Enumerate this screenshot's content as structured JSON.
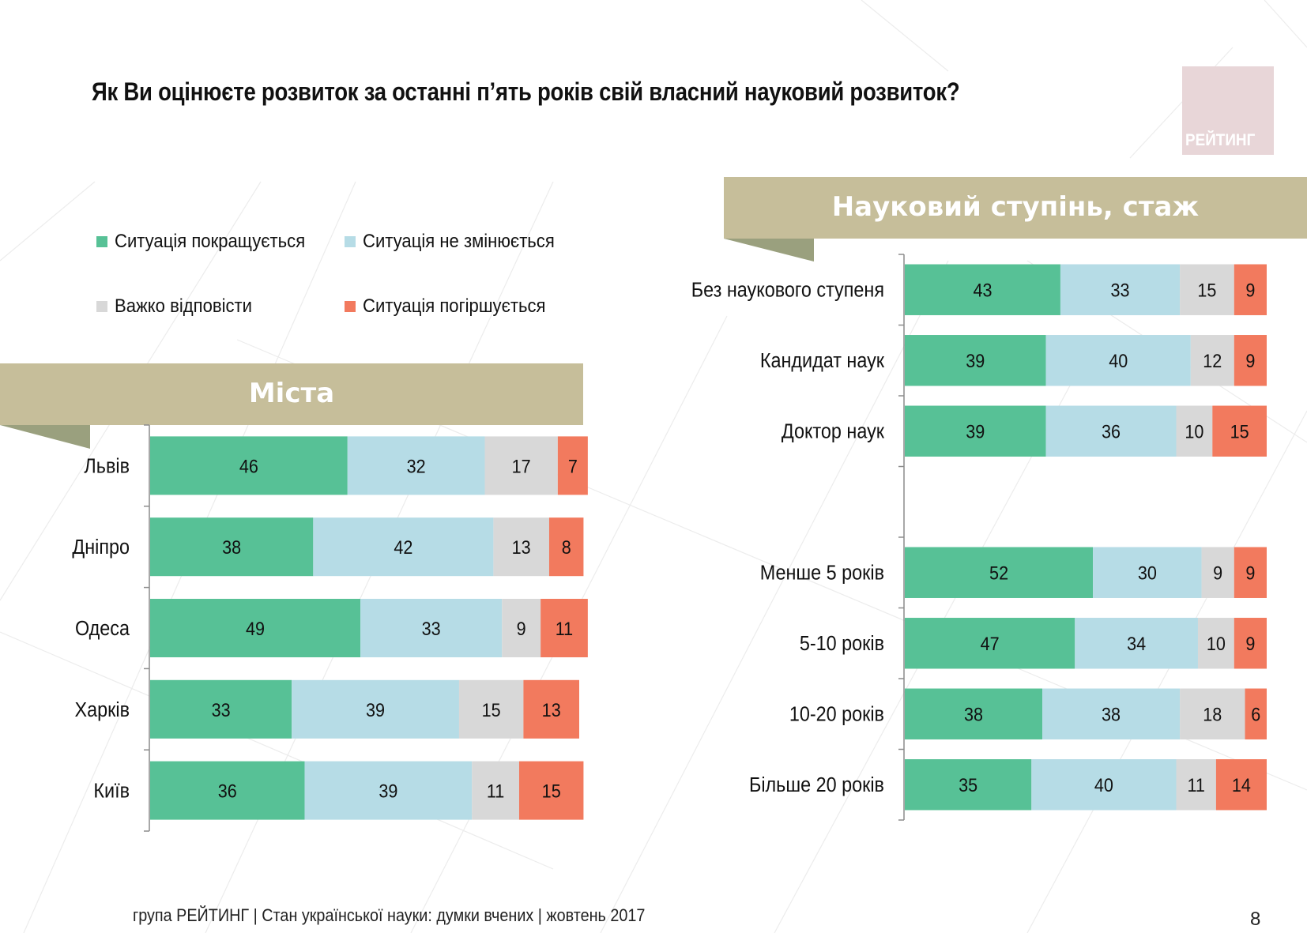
{
  "title": "Як Ви оцінюєте розвиток за останні п’ять років свій власний науковий розвиток?",
  "logo": {
    "text": "РЕЙТИНГ"
  },
  "legend": {
    "items": [
      {
        "label": "Ситуація покращується",
        "color": "#57c196"
      },
      {
        "label": "Ситуація не змінюється",
        "color": "#b6dce6"
      },
      {
        "label": "Важко відповісти",
        "color": "#d8d8d8"
      },
      {
        "label": "Ситуація погіршується",
        "color": "#f27a5e"
      }
    ]
  },
  "banners": {
    "cities": "Міста",
    "degree": "Науковий ступінь, стаж"
  },
  "footer": {
    "text": "група РЕЙТИНГ | Стан української науки: думки вчених | жовтень 2017",
    "page": "8"
  },
  "chart_data": [
    {
      "type": "bar",
      "orientation": "horizontal",
      "stacked": true,
      "title": "Міста",
      "categories": [
        "Львів",
        "Дніпро",
        "Одеса",
        "Харків",
        "Київ"
      ],
      "series": [
        {
          "name": "Ситуація покращується",
          "values": [
            46,
            38,
            49,
            33,
            36
          ]
        },
        {
          "name": "Ситуація не змінюється",
          "values": [
            32,
            42,
            33,
            39,
            39
          ]
        },
        {
          "name": "Важко відповісти",
          "values": [
            17,
            13,
            9,
            15,
            11
          ]
        },
        {
          "name": "Ситуація погіршується",
          "values": [
            7,
            8,
            11,
            13,
            15
          ]
        }
      ],
      "xlim": [
        0,
        100
      ],
      "grid": false,
      "legend": "top"
    },
    {
      "type": "bar",
      "orientation": "horizontal",
      "stacked": true,
      "title": "Науковий ступінь, стаж",
      "categories": [
        "Без наукового ступеня",
        "Кандидат наук",
        "Доктор наук",
        "",
        "Менше 5 років",
        "5-10 років",
        "10-20 років",
        "Більше 20 років"
      ],
      "series": [
        {
          "name": "Ситуація покращується",
          "values": [
            43,
            39,
            39,
            null,
            52,
            47,
            38,
            35
          ]
        },
        {
          "name": "Ситуація не змінюється",
          "values": [
            33,
            40,
            36,
            null,
            30,
            34,
            38,
            40
          ]
        },
        {
          "name": "Важко відповісти",
          "values": [
            15,
            12,
            10,
            null,
            9,
            10,
            18,
            11
          ]
        },
        {
          "name": "Ситуація погіршується",
          "values": [
            9,
            9,
            15,
            null,
            9,
            9,
            6,
            14
          ]
        }
      ],
      "xlim": [
        0,
        100
      ],
      "grid": false,
      "legend": "top"
    }
  ]
}
